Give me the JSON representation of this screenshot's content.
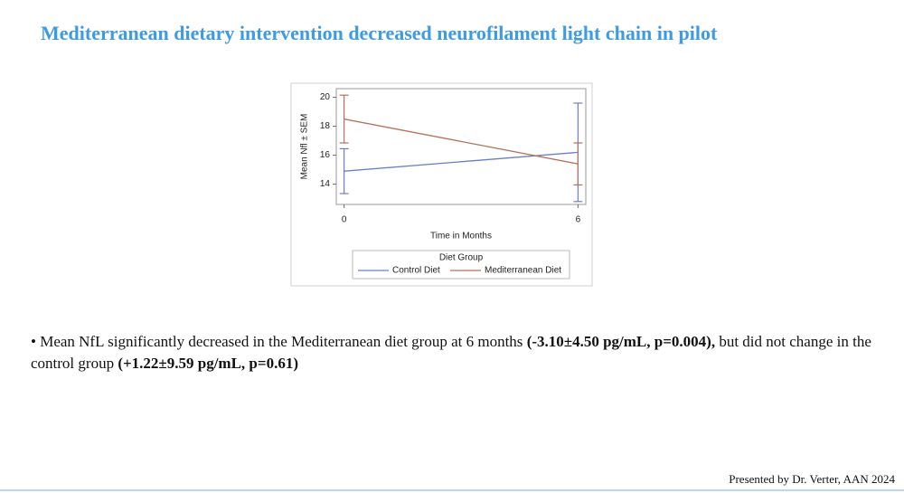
{
  "slide": {
    "title": "Mediterranean dietary intervention decreased neurofilament light chain in pilot",
    "bullet": [
      "Mean NfL significantly decreased in the Mediterranean diet group at 6 months ",
      "(-3.10±4.50 pg/mL, p=0.004),",
      " but did not change in the control group ",
      "(+1.22±9.59 pg/mL, p=0.61)"
    ],
    "footer": "Presented by Dr. Verter, AAN 2024"
  },
  "chart_data": {
    "type": "line",
    "x_label": "Time in Months",
    "y_label": "Mean Nfl ± SEM",
    "x": [
      0,
      6
    ],
    "xlim": [
      -0.2,
      6.2
    ],
    "xticks": [
      0,
      6
    ],
    "ylim": [
      12.6,
      20.6
    ],
    "yticks": [
      14,
      16,
      18,
      20
    ],
    "legend_title": "Diet Group",
    "series": [
      {
        "name": "Control Diet",
        "color": "#6b7fc4",
        "values": [
          14.9,
          16.2
        ],
        "errors": [
          1.55,
          3.4
        ]
      },
      {
        "name": "Mediterranean Diet",
        "color": "#b5705a",
        "values": [
          18.5,
          15.4
        ],
        "errors": [
          1.65,
          1.45
        ]
      }
    ]
  }
}
